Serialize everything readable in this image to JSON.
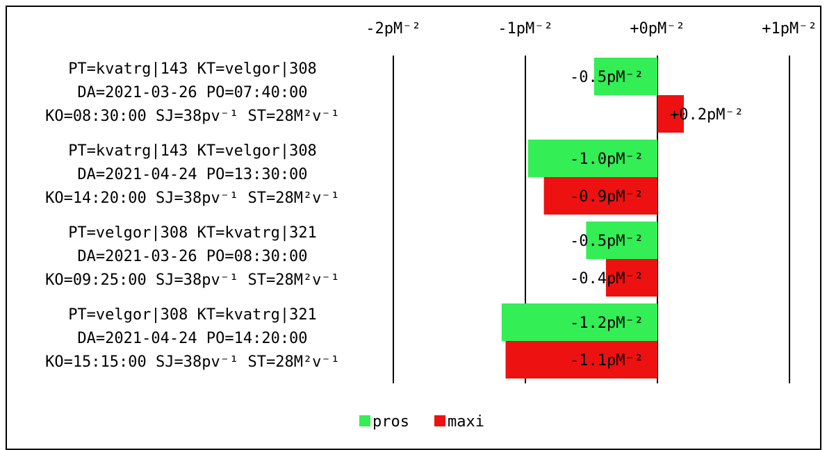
{
  "chart_data": {
    "type": "bar",
    "orientation": "horizontal",
    "x_ticks": [
      "-2pM⁻²",
      "-1pM⁻²",
      "+0pM⁻²",
      "+1pM⁻²"
    ],
    "x_tick_values": [
      -2,
      -1,
      0,
      1
    ],
    "xlim": [
      -2,
      1
    ],
    "categories": [
      [
        "PT=kvatrg|143 KT=velgor|308",
        "DA=2021-03-26 PO=07:40:00",
        "KO=08:30:00 SJ=38pv⁻¹ ST=28M²v⁻¹"
      ],
      [
        "PT=kvatrg|143 KT=velgor|308",
        "DA=2021-04-24 PO=13:30:00",
        "KO=14:20:00 SJ=38pv⁻¹ ST=28M²v⁻¹"
      ],
      [
        "PT=velgor|308 KT=kvatrg|321",
        "DA=2021-03-26 PO=08:30:00",
        "KO=09:25:00 SJ=38pv⁻¹ ST=28M²v⁻¹"
      ],
      [
        "PT=velgor|308 KT=kvatrg|321",
        "DA=2021-04-24 PO=14:20:00",
        "KO=15:15:00 SJ=38pv⁻¹ ST=28M²v⁻¹"
      ]
    ],
    "series": [
      {
        "name": "pros",
        "color": "#33ee55",
        "values": [
          -0.48,
          -0.98,
          -0.54,
          -1.18
        ],
        "labels": [
          "-0.5pM⁻²",
          "-1.0pM⁻²",
          "-0.5pM⁻²",
          "-1.2pM⁻²"
        ]
      },
      {
        "name": "maxi",
        "color": "#ee1111",
        "values": [
          0.2,
          -0.86,
          -0.39,
          -1.15
        ],
        "labels": [
          "+0.2pM⁻²",
          "-0.9pM⁻²",
          "-0.4pM⁻²",
          "-1.1pM⁻²"
        ]
      }
    ],
    "grid": true,
    "legend": "bottom-center"
  }
}
